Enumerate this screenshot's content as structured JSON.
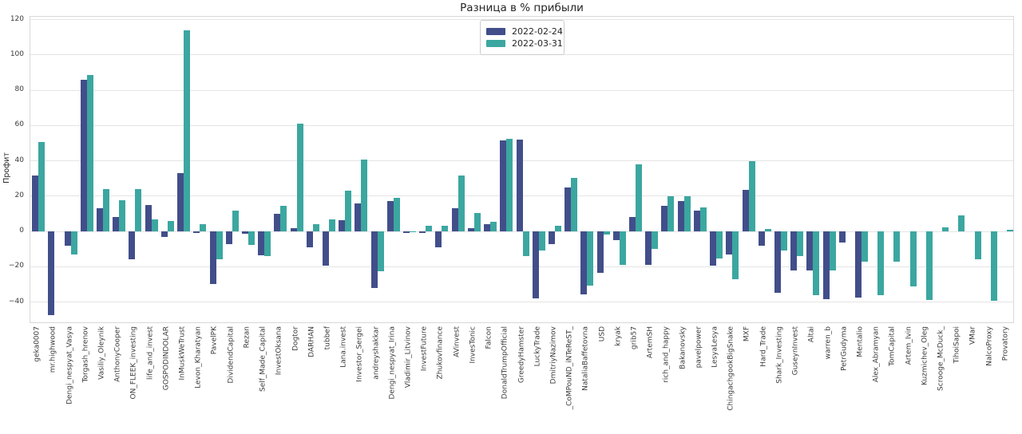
{
  "chart_data": {
    "type": "bar",
    "title": "Разница в % прибыли",
    "xlabel": "",
    "ylabel": "Профит",
    "ylim": [
      -52.4,
      121.6
    ],
    "yticks": [
      -40,
      -20,
      0,
      20,
      40,
      60,
      80,
      100,
      120
    ],
    "grid": true,
    "legend_position": "top-center",
    "x_tick_rotation_note": "labels read bottom-to-top",
    "categories": [
      "geka0007",
      "mr.highwood",
      "Dengi_nespyat_Vasya",
      "Torgash_hrenov",
      "Vasiliy_Oleynik",
      "AnthonyCooper",
      "ON_FLEEK_investing",
      "life_and_invest",
      "GOSPODINDOLAR",
      "InMuskWeTrust",
      "Levon_Kharatyan",
      "PavelPK",
      "DividendCapital",
      "Rezan",
      "Self_Made_Capital",
      "InvestOksana",
      "Dogtor",
      "DARHAN",
      "tubbef",
      "Lana.invest",
      "Investor_Sergei",
      "andreyshakkar",
      "Dengi_nespyat_Irina",
      "Vladimir_Litvinov",
      "InvestFuture",
      "Zhukovfinance",
      "AVinvest",
      "InvesTonic",
      "Falcon",
      "DonaldTrumpOfficial",
      "GreedyHamster",
      "LuckyTrade",
      "DmitriyNazimov",
      "_CoMPouND_iNTeReST_",
      "NataliaBaffetovna",
      "USD",
      "kryak",
      "grib57",
      "ArtemSH",
      "rich_and_happy",
      "Bakanovsky",
      "pavelpower",
      "LesyaLesya",
      "ChingachgookBigSnake",
      "MXF",
      "Hard_Trade",
      "Shark_Investing",
      "GuseynInvest",
      "Altai",
      "warren_b",
      "PetrGudyma",
      "Mentalio",
      "Alex_Abramyan",
      "TomCapital",
      "Artem_Ivin",
      "Kuzmichev_Oleg",
      "Scrooge_McDuck_",
      "TihoiSapoi",
      "VMar",
      "NalcoProxy",
      "Provatory"
    ],
    "series": [
      {
        "name": "2022-02-24",
        "color": "#424e8a",
        "values": [
          31.5,
          -47.5,
          -8,
          86,
          13,
          8,
          -16,
          15,
          -3,
          33,
          -1,
          -30,
          -7,
          -1.5,
          -13.5,
          10,
          2,
          -9,
          -19.5,
          6.5,
          16,
          -32,
          17,
          -1,
          -1,
          -9,
          13,
          2,
          4,
          51.5,
          52,
          -38,
          -7,
          25,
          -35.5,
          -23.5,
          -5,
          8,
          -19,
          14.5,
          17,
          12,
          -19.5,
          -13,
          23.5,
          -8,
          -35,
          -22,
          -22,
          -38.5,
          -6.5,
          -37.5,
          0,
          0,
          0,
          0,
          0,
          0,
          0,
          0,
          0
        ]
      },
      {
        "name": "2022-03-31",
        "color": "#3ba7a0",
        "values": [
          50.5,
          0,
          -13,
          88.5,
          24,
          17.5,
          24,
          7,
          6,
          114,
          4,
          -16,
          12,
          -7.5,
          -14,
          14.5,
          61,
          4,
          7,
          23,
          40.5,
          -22.5,
          19,
          -0.5,
          3,
          3,
          31.5,
          10.5,
          5.5,
          52.5,
          -14,
          -11,
          3,
          30.5,
          -30.5,
          -2,
          -19,
          38,
          -10,
          20,
          20,
          13.5,
          -15.5,
          -27,
          40,
          1.5,
          -11,
          -14,
          -36,
          -22,
          0,
          -17,
          -36,
          -17,
          -31,
          -39,
          2.5,
          9,
          -16,
          -39.5,
          1
        ]
      }
    ]
  }
}
